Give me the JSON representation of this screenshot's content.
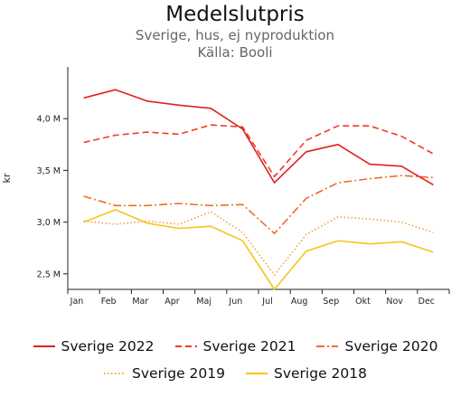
{
  "chart_data": {
    "type": "line",
    "title": "Medelslutpris",
    "subtitle": "Sverige, hus, ej nyproduktion",
    "source": "Källa: Booli",
    "ylabel": "kr",
    "categories": [
      "Jan",
      "Feb",
      "Mar",
      "Apr",
      "Maj",
      "Jun",
      "Jul",
      "Aug",
      "Sep",
      "Okt",
      "Nov",
      "Dec"
    ],
    "ylim": [
      2.35,
      4.5
    ],
    "yticks": [
      2.5,
      3.0,
      3.5,
      4.0
    ],
    "ytick_labels": [
      "2,5 M",
      "3,0 M",
      "3,5 M",
      "4,0 M"
    ],
    "series": [
      {
        "name": "Sverige 2022",
        "color": "#e02020",
        "dash": "solid",
        "values": [
          4.2,
          4.28,
          4.17,
          4.13,
          4.1,
          3.9,
          3.38,
          3.68,
          3.75,
          3.56,
          3.54,
          3.36
        ]
      },
      {
        "name": "Sverige 2021",
        "color": "#ef3b24",
        "dash": "dashed",
        "values": [
          3.77,
          3.84,
          3.87,
          3.85,
          3.94,
          3.92,
          3.44,
          3.79,
          3.93,
          3.93,
          3.83,
          3.66
        ]
      },
      {
        "name": "Sverige 2020",
        "color": "#f26c2a",
        "dash": "dashdot",
        "values": [
          3.25,
          3.16,
          3.16,
          3.18,
          3.16,
          3.17,
          2.89,
          3.23,
          3.38,
          3.42,
          3.45,
          3.43
        ]
      },
      {
        "name": "Sverige 2019",
        "color": "#f3a23a",
        "dash": "dotted",
        "values": [
          3.01,
          2.98,
          3.01,
          2.98,
          3.1,
          2.9,
          2.49,
          2.88,
          3.05,
          3.03,
          3.0,
          2.9
        ]
      },
      {
        "name": "Sverige 2018",
        "color": "#f5c518",
        "dash": "solid",
        "values": [
          3.0,
          3.12,
          2.99,
          2.94,
          2.96,
          2.82,
          2.35,
          2.72,
          2.82,
          2.79,
          2.81,
          2.71
        ]
      }
    ],
    "legend_position": "bottom",
    "grid": false
  }
}
